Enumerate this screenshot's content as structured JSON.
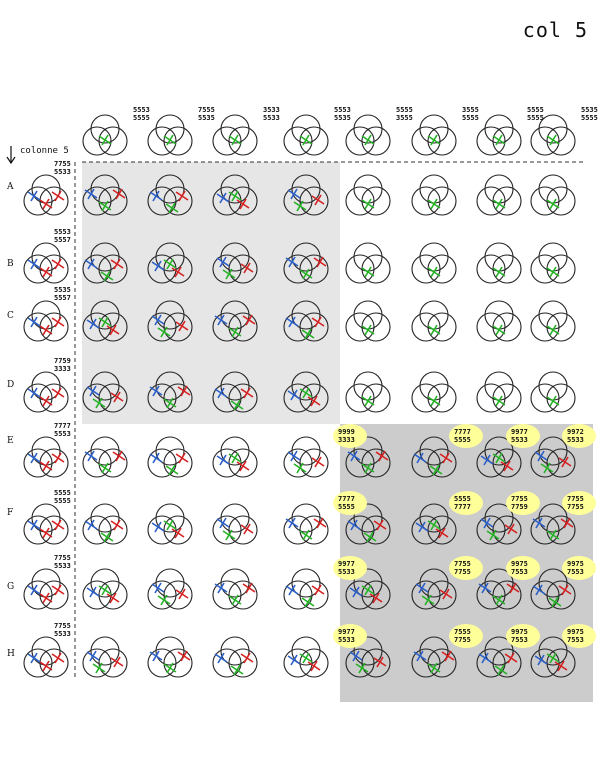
{
  "page": {
    "title": "col 5",
    "column_label": "colonne 5"
  },
  "rows": [
    "A",
    "B",
    "C",
    "D",
    "E",
    "F",
    "G",
    "H"
  ],
  "header_codes": [
    [
      "5553",
      "5555"
    ],
    [
      "7555",
      "5535"
    ],
    [
      "3533",
      "5533"
    ],
    [
      "5553",
      "5535"
    ],
    [
      "5555",
      "3555"
    ],
    [
      "3555",
      "5555"
    ],
    [
      "5555",
      "5555"
    ],
    [
      "5535",
      "5555"
    ]
  ],
  "row_codes": [
    [
      "7755",
      "5533"
    ],
    [
      "5553",
      "5557"
    ],
    [
      "5535",
      "5557"
    ],
    [
      "7759",
      "3333"
    ],
    [
      "7777",
      "5553"
    ],
    [
      "5555",
      "5555"
    ],
    [
      "7755",
      "5533"
    ],
    [
      "7755",
      "5533"
    ]
  ],
  "bubble_codes": [
    [
      [
        "9999",
        "3333"
      ],
      [
        "7777",
        "5555"
      ],
      [
        "9977",
        "5533"
      ],
      [
        "9972",
        "5533"
      ]
    ],
    [
      [
        "7777",
        "5555"
      ],
      [
        "5555",
        "7777"
      ],
      [
        "7755",
        "7759"
      ],
      [
        "7755",
        "7755"
      ]
    ],
    [
      [
        "9977",
        "5533"
      ],
      [
        "7755",
        "7755"
      ],
      [
        "9975",
        "7553"
      ],
      [
        "9975",
        "7553"
      ]
    ],
    [
      [
        "9977",
        "5533"
      ],
      [
        "7555",
        "7755"
      ],
      [
        "9975",
        "7553"
      ],
      [
        "9975",
        "7553"
      ]
    ]
  ],
  "colors": {
    "red": "#d42020",
    "blue": "#2a5ec8",
    "green": "#22b222",
    "light_panel": "#e6e6e6",
    "dark_panel": "#cccccc",
    "bubble": "#ffff99"
  }
}
